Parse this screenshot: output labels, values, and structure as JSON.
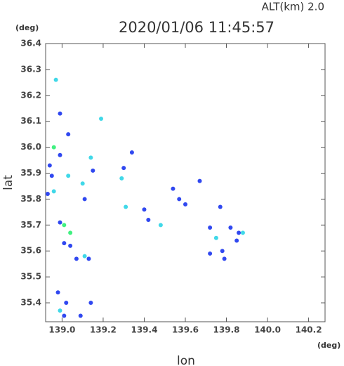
{
  "chart_data": {
    "type": "scatter",
    "title": "2020/01/06 11:45:57",
    "subtitle": "ALT(km) 2.0",
    "y_unit": "(deg)",
    "x_unit": "(deg)",
    "x_label": "lon",
    "y_label": "lat",
    "xlim": [
      138.92,
      140.28
    ],
    "ylim": [
      35.327,
      36.4
    ],
    "xticks": [
      {
        "value": 139,
        "label": "139.0"
      },
      139.2,
      139.4,
      139.6,
      139.8,
      {
        "value": 140,
        "label": "140.0"
      },
      140.2
    ],
    "yticks": [
      35.4,
      35.5,
      35.6,
      35.7,
      35.8,
      35.9,
      {
        "value": 36,
        "label": "36.0"
      },
      36.1,
      36.2,
      36.3,
      36.4
    ],
    "x": [
      138.97,
      138.99,
      139.03,
      138.96,
      138.99,
      138.94,
      138.95,
      139.03,
      138.96,
      138.93,
      139.1,
      139.11,
      138.99,
      139.01,
      139.04,
      139.01,
      139.04,
      139.07,
      139.11,
      139.13,
      138.98,
      139.02,
      139.14,
      138.99,
      139.01,
      139.09,
      139.19,
      139.14,
      139.15,
      139.29,
      139.3,
      139.34,
      139.31,
      139.4,
      139.48,
      139.42,
      139.54,
      139.57,
      139.67,
      139.6,
      139.77,
      139.72,
      139.75,
      139.78,
      139.79,
      139.82,
      139.86,
      139.88,
      139.85,
      139.72
    ],
    "y": [
      36.26,
      36.13,
      36.05,
      36.0,
      35.97,
      35.93,
      35.89,
      35.89,
      35.83,
      35.82,
      35.86,
      35.8,
      35.71,
      35.7,
      35.67,
      35.63,
      35.62,
      35.57,
      35.58,
      35.57,
      35.44,
      35.4,
      35.4,
      35.37,
      35.35,
      35.35,
      36.11,
      35.96,
      35.91,
      35.88,
      35.92,
      35.98,
      35.77,
      35.76,
      35.7,
      35.72,
      35.84,
      35.8,
      35.87,
      35.78,
      35.77,
      35.69,
      35.65,
      35.6,
      35.57,
      35.69,
      35.67,
      35.67,
      35.64,
      35.59
    ],
    "colors": [
      "#40d8e8",
      "#3048f0",
      "#3048f0",
      "#40f080",
      "#3048f0",
      "#3048f0",
      "#3048f0",
      "#40d8e8",
      "#40d8e8",
      "#3048f0",
      "#40d8e8",
      "#3048f0",
      "#3048f0",
      "#40f080",
      "#40f080",
      "#3048f0",
      "#3048f0",
      "#3048f0",
      "#40d8e8",
      "#3048f0",
      "#3048f0",
      "#3048f0",
      "#3048f0",
      "#40d8e8",
      "#3048f0",
      "#3048f0",
      "#40d8e8",
      "#40d8e8",
      "#3048f0",
      "#40d8e8",
      "#3048f0",
      "#3048f0",
      "#40d8e8",
      "#3048f0",
      "#40d8e8",
      "#3048f0",
      "#3048f0",
      "#3048f0",
      "#3048f0",
      "#3048f0",
      "#3048f0",
      "#3048f0",
      "#40d8e8",
      "#3048f0",
      "#3048f0",
      "#3048f0",
      "#3048f0",
      "#40d8e8",
      "#3048f0",
      "#3048f0"
    ]
  }
}
